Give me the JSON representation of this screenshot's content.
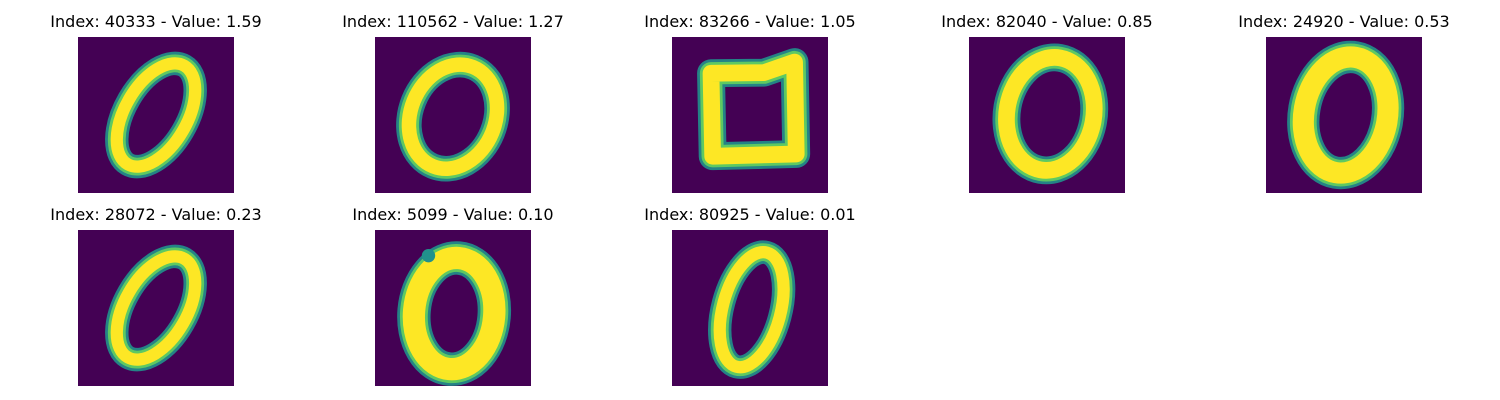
{
  "colors": {
    "background": "#440154",
    "teal": "#21918c",
    "green": "#5ec962",
    "yellow": "#fde725"
  },
  "panels": [
    {
      "title": "Index: 40333 - Value: 1.59",
      "shape": "slanted-ellipse"
    },
    {
      "title": "Index: 110562 - Value: 1.27",
      "shape": "round-ellipse"
    },
    {
      "title": "Index: 83266 - Value: 1.05",
      "shape": "square-loop"
    },
    {
      "title": "Index: 82040 - Value: 0.85",
      "shape": "lumpy-loop"
    },
    {
      "title": "Index: 24920 - Value: 0.53",
      "shape": "thick-oval"
    },
    {
      "title": "Index: 28072 - Value: 0.23",
      "shape": "slanted-ellipse"
    },
    {
      "title": "Index: 5099 - Value: 0.10",
      "shape": "thick-round"
    },
    {
      "title": "Index: 80925 - Value: 0.01",
      "shape": "narrow-ellipse"
    }
  ]
}
